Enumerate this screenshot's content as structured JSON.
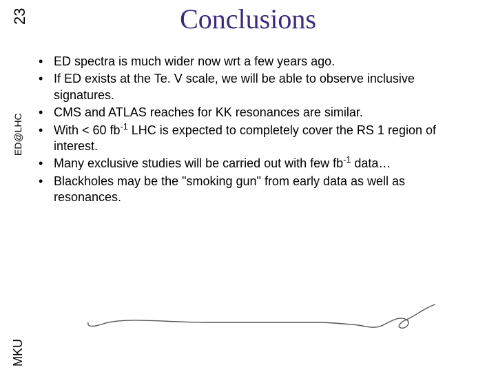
{
  "page_number": "23",
  "side_label_mid": "ED@LHC",
  "side_label_bottom": "MKU",
  "title": "Conclusions",
  "title_color": "#3b2a7a",
  "bullet_color": "#000000",
  "background_color": "#ffffff",
  "bullets": [
    {
      "html": "ED spectra is much wider now wrt a few years ago."
    },
    {
      "html": "If ED exists at the Te. V scale, we will be able to observe inclusive signatures."
    },
    {
      "html": "CMS and ATLAS reaches for KK resonances are similar."
    },
    {
      "html": "With < 60 fb<sup>-1</sup> LHC is expected to completely cover the RS 1 region of interest."
    },
    {
      "html": "Many exclusive studies will be carried out with few fb<sup>-1</sup> data…"
    },
    {
      "html": "Blackholes may be the \"smoking gun\" from early data as well as resonances."
    }
  ],
  "flourish": {
    "stroke": "#555555",
    "stroke_width": 1.4
  }
}
